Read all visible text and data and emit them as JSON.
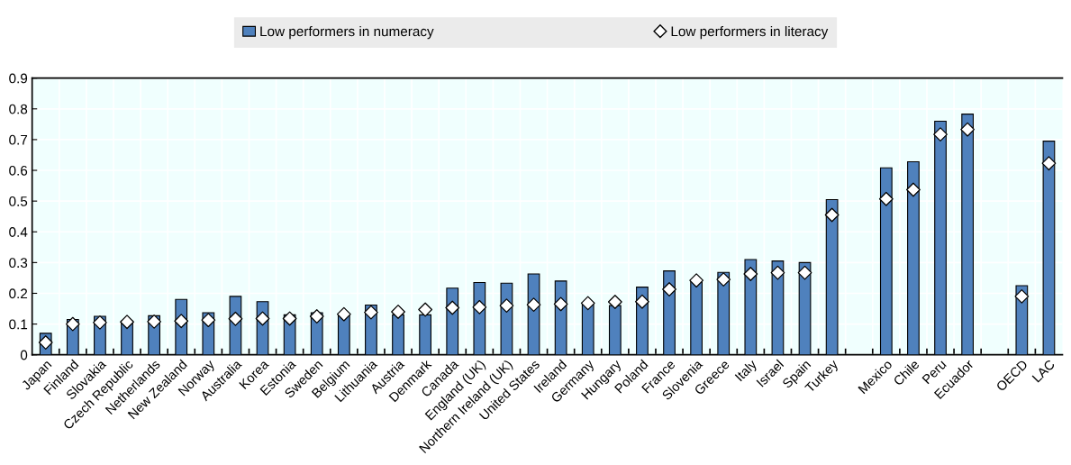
{
  "chart_data": {
    "type": "bar",
    "categories": [
      "Japan",
      "Finland",
      "Slovakia",
      "Czech Republic",
      "Netherlands",
      "New Zealand",
      "Norway",
      "Australia",
      "Korea",
      "Estonia",
      "Sweden",
      "Belgium",
      "Lithuania",
      "Austria",
      "Denmark",
      "Canada",
      "England (UK)",
      "Northern Ireland (UK)",
      "United States",
      "Ireland",
      "Germany",
      "Hungary",
      "Poland",
      "France",
      "Slovenia",
      "Greece",
      "Italy",
      "Israel",
      "Spain",
      "Turkey",
      null,
      "Mexico",
      "Chile",
      "Peru",
      "Ecuador",
      null,
      "OECD",
      "LAC"
    ],
    "series": [
      {
        "name": "Low performers in numeracy",
        "color": "#4f81bd",
        "values": [
          0.07,
          0.115,
          0.125,
          0.11,
          0.127,
          0.18,
          0.137,
          0.19,
          0.173,
          0.13,
          0.137,
          0.13,
          0.162,
          0.13,
          0.13,
          0.217,
          0.235,
          0.233,
          0.263,
          0.24,
          0.17,
          0.16,
          0.22,
          0.273,
          0.24,
          0.268,
          0.31,
          0.305,
          0.3,
          0.505,
          null,
          0.608,
          0.628,
          0.76,
          0.783,
          null,
          0.225,
          0.695
        ]
      },
      {
        "name": "Low performers in literacy",
        "type": "scatter",
        "color": "#ffffff",
        "values": [
          0.04,
          0.1,
          0.105,
          0.107,
          0.108,
          0.11,
          0.113,
          0.117,
          0.118,
          0.118,
          0.125,
          0.132,
          0.138,
          0.14,
          0.147,
          0.153,
          0.155,
          0.16,
          0.163,
          0.165,
          0.168,
          0.172,
          0.173,
          0.213,
          0.242,
          0.245,
          0.263,
          0.267,
          0.267,
          0.455,
          null,
          0.507,
          0.537,
          0.717,
          0.733,
          null,
          0.19,
          0.623
        ]
      }
    ],
    "marker": "diamond",
    "ylim": [
      0,
      0.9
    ],
    "yticks": [
      0,
      0.1,
      0.2,
      0.3,
      0.4,
      0.5,
      0.6,
      0.7,
      0.8,
      0.9
    ],
    "grid": true,
    "legend": "top"
  }
}
